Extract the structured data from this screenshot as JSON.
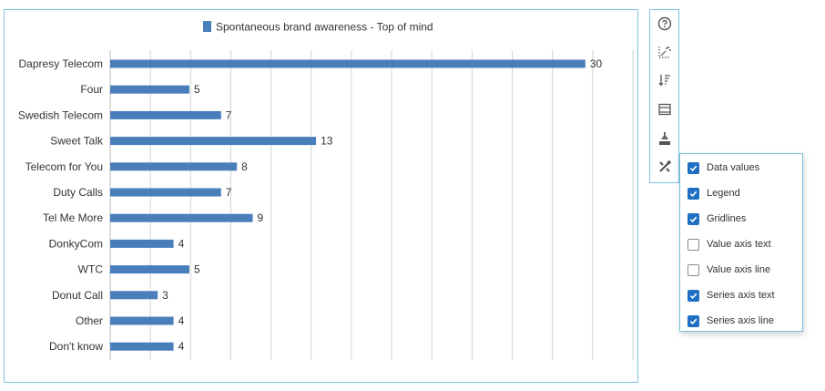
{
  "chart_data": {
    "type": "bar",
    "orientation": "horizontal",
    "title": "",
    "legend": {
      "position": "top",
      "entries": [
        "Spontaneous brand awareness - Top of mind"
      ]
    },
    "categories": [
      "Dapresy Telecom",
      "Four",
      "Swedish Telecom",
      "Sweet Talk",
      "Telecom for You",
      "Duty Calls",
      "Tel Me More",
      "DonkyCom",
      "WTC",
      "Donut Call",
      "Other",
      "Don't know"
    ],
    "series": [
      {
        "name": "Spontaneous brand awareness - Top of mind",
        "values": [
          30,
          5,
          7,
          13,
          8,
          7,
          9,
          4,
          5,
          3,
          4,
          4
        ],
        "color": "#4a7ebb"
      }
    ],
    "xlim": [
      0,
      33
    ],
    "grid": true,
    "data_labels": true,
    "value_axis_text": false,
    "value_axis_line": false,
    "series_axis_text": true,
    "series_axis_line": true,
    "xlabel": "",
    "ylabel": ""
  },
  "toolbar": {
    "tools": [
      {
        "icon": "help-icon"
      },
      {
        "icon": "chart-type-icon"
      },
      {
        "icon": "sort-icon"
      },
      {
        "icon": "table-view-icon"
      },
      {
        "icon": "format-icon"
      },
      {
        "icon": "settings-icon"
      }
    ]
  },
  "options_popup": {
    "items": [
      {
        "label": "Data values",
        "checked": true
      },
      {
        "label": "Legend",
        "checked": true
      },
      {
        "label": "Gridlines",
        "checked": true
      },
      {
        "label": "Value axis text",
        "checked": false
      },
      {
        "label": "Value axis line",
        "checked": false
      },
      {
        "label": "Series axis text",
        "checked": true
      },
      {
        "label": "Series axis line",
        "checked": true
      }
    ]
  },
  "colors": {
    "bar": "#4a7ebb",
    "accent": "#1f6fc4",
    "border": "#7fc1e0",
    "grid": "#d3d3d3"
  }
}
